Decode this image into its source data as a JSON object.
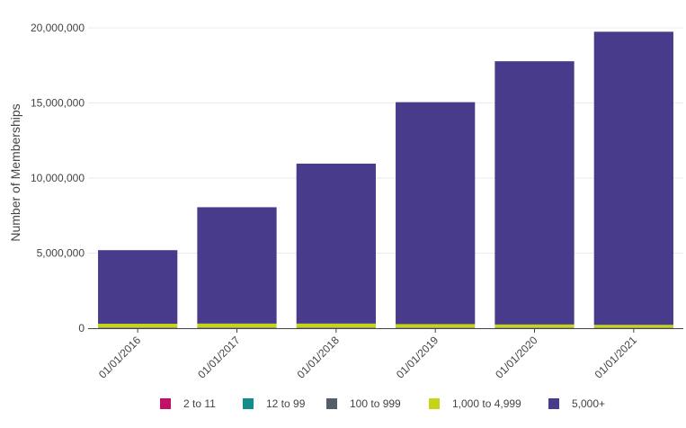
{
  "chart_data": {
    "type": "bar",
    "stacked": true,
    "title": "",
    "xlabel": "",
    "ylabel": "Number of Memberships",
    "ylim": [
      0,
      20000000
    ],
    "yticks": [
      0,
      5000000,
      10000000,
      15000000,
      20000000
    ],
    "ytick_labels": [
      "0",
      "5,000,000",
      "10,000,000",
      "15,000,000",
      "20,000,000"
    ],
    "categories": [
      "01/01/2016",
      "01/01/2017",
      "01/01/2018",
      "01/01/2019",
      "01/01/2020",
      "01/01/2021"
    ],
    "grid": true,
    "legend_position": "bottom",
    "series": [
      {
        "name": "2 to 11",
        "color": "#c0106a",
        "values": [
          2000,
          2000,
          2000,
          2000,
          2000,
          2000
        ]
      },
      {
        "name": "12 to 99",
        "color": "#138d8a",
        "values": [
          5000,
          5000,
          5000,
          5000,
          5000,
          5000
        ]
      },
      {
        "name": "100 to 999",
        "color": "#555e66",
        "values": [
          40000,
          40000,
          40000,
          35000,
          30000,
          25000
        ]
      },
      {
        "name": "1,000 to 4,999",
        "color": "#c5d414",
        "values": [
          250000,
          260000,
          260000,
          230000,
          210000,
          190000
        ]
      },
      {
        "name": "5,000+",
        "color": "#483b8b",
        "values": [
          4900000,
          7750000,
          10650000,
          14780000,
          17530000,
          19520000
        ]
      }
    ]
  }
}
